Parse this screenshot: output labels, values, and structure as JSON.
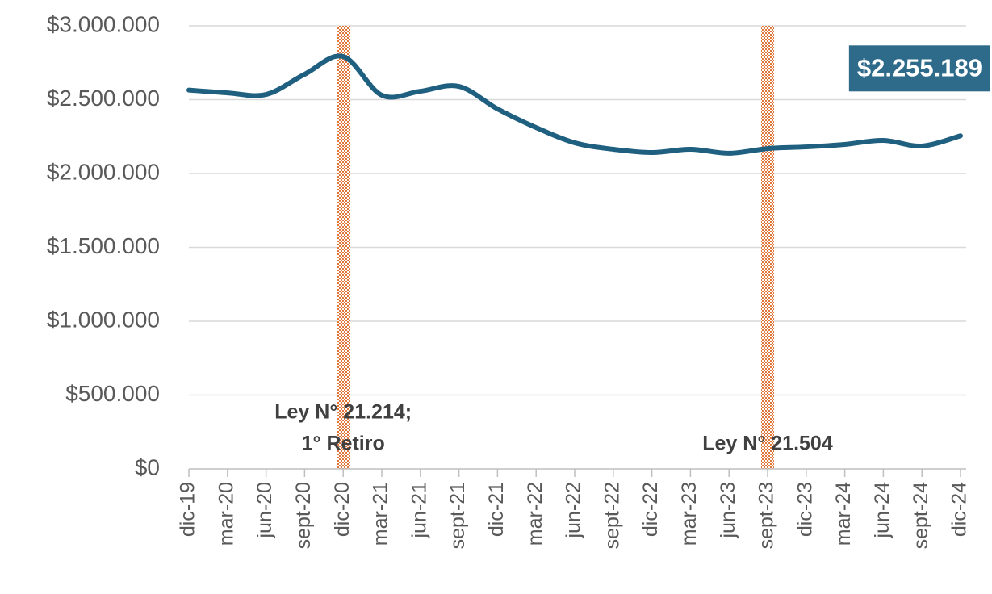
{
  "chart_data": {
    "type": "line",
    "categories": [
      "dic-19",
      "mar-20",
      "jun-20",
      "sept-20",
      "dic-20",
      "mar-21",
      "jun-21",
      "sept-21",
      "dic-21",
      "mar-22",
      "jun-22",
      "sept-22",
      "dic-22",
      "mar-23",
      "jun-23",
      "sept-23",
      "dic-23",
      "mar-24",
      "jun-24",
      "sept-24",
      "dic-24"
    ],
    "series": [
      {
        "color": "#1f5f7f",
        "values": [
          2565000,
          2546000,
          2535000,
          2672000,
          2792000,
          2530000,
          2557000,
          2590000,
          2437000,
          2311000,
          2208000,
          2164000,
          2142000,
          2164000,
          2137000,
          2169000,
          2180000,
          2197000,
          2224000,
          2186000,
          2255189
        ],
        "value_labels": [
          null,
          null,
          null,
          null,
          null,
          null,
          null,
          null,
          null,
          null,
          null,
          null,
          null,
          null,
          null,
          null,
          null,
          null,
          null,
          null,
          "$2.255.189"
        ]
      }
    ],
    "ylim": [
      0,
      3000000
    ],
    "yticks": [
      {
        "value": 0,
        "label": "$0"
      },
      {
        "value": 500000,
        "label": "$500.000"
      },
      {
        "value": 1000000,
        "label": "$1.000.000"
      },
      {
        "value": 1500000,
        "label": "$1.500.000"
      },
      {
        "value": 2000000,
        "label": "$2.000.000"
      },
      {
        "value": 2500000,
        "label": "$2.500.000"
      },
      {
        "value": 3000000,
        "label": "$3.000.000"
      }
    ],
    "grid": true,
    "events": [
      {
        "x": "dic-20",
        "lines": [
          "Ley N° 21.214;",
          "1° Retiro"
        ]
      },
      {
        "x": "sept-23",
        "lines": [
          "Ley N° 21.504"
        ]
      }
    ],
    "event_color": "#e0763a"
  }
}
